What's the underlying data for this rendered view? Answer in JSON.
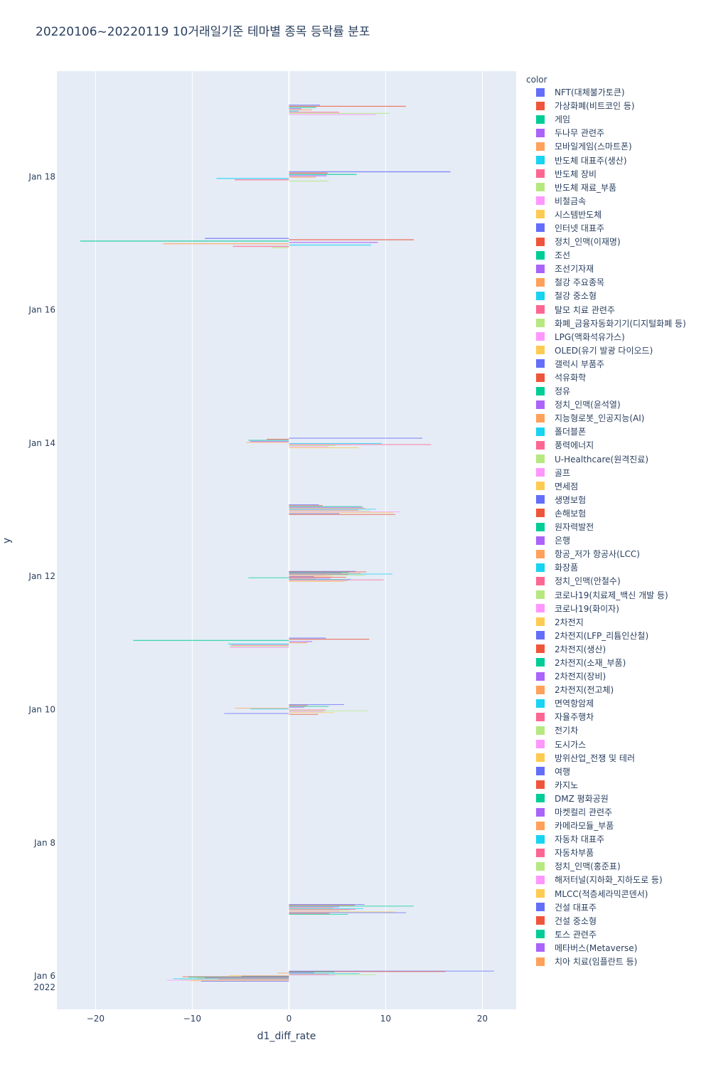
{
  "chart_data": {
    "type": "bar",
    "orientation": "horizontal",
    "title": "20220106~20220119 10거래일기준 테마별 종목 등락률 분포",
    "xlabel": "d1_diff_rate",
    "ylabel": "y",
    "xlim": [
      -24,
      23.5
    ],
    "x_ticks": [
      -20,
      -10,
      0,
      10,
      20
    ],
    "x_tick_labels": [
      "−20",
      "−10",
      "0",
      "10",
      "20"
    ],
    "y_range": [
      "2022-01-05 12:00",
      "2022-01-19 14:00"
    ],
    "y_ticks": [
      {
        "date": "2022-01-06",
        "label": "Jan 6",
        "sublabel": "2022"
      },
      {
        "date": "2022-01-08",
        "label": "Jan 8"
      },
      {
        "date": "2022-01-10",
        "label": "Jan 10"
      },
      {
        "date": "2022-01-12",
        "label": "Jan 12"
      },
      {
        "date": "2022-01-14",
        "label": "Jan 14"
      },
      {
        "date": "2022-01-16",
        "label": "Jan 16"
      },
      {
        "date": "2022-01-18",
        "label": "Jan 18"
      }
    ],
    "legend_title": "color",
    "legend_position": "right",
    "categories": [
      "NFT(대체불가토큰)",
      "가상화폐(비트코인 등)",
      "게임",
      "두나무 관련주",
      "모바일게임(스마트폰)",
      "반도체 대표주(생산)",
      "반도체 장비",
      "반도체 재료_부품",
      "비철금속",
      "시스템반도체",
      "인터넷 대표주",
      "정치_인맥(이재명)",
      "조선",
      "조선기자재",
      "철강 주요종목",
      "철강 중소형",
      "탈모 치료 관련주",
      "화폐_금융자동화기기(디지털화폐 등)",
      "LPG(액화석유가스)",
      "OLED(유기 발광 다이오드)",
      "갤럭시 부품주",
      "석유화학",
      "정유",
      "정치_인맥(윤석열)",
      "지능형로봇_인공지능(AI)",
      "폴더블폰",
      "풍력에너지",
      "U-Healthcare(원격진료)",
      "골프",
      "면세점",
      "생명보험",
      "손해보험",
      "원자력발전",
      "은행",
      "항공_저가 항공사(LCC)",
      "화장품",
      "정치_인맥(안철수)",
      "코로나19(치료제_백신 개발 등)",
      "코로나19(화이자)",
      "2차전지",
      "2차전지(LFP_리튬인산철)",
      "2차전지(생산)",
      "2차전지(소재_부품)",
      "2차전지(장비)",
      "2차전지(전고체)",
      "면역항암제",
      "자율주행차",
      "전기차",
      "도시가스",
      "방위산업_전쟁 및 테러",
      "여행",
      "카지노",
      "DMZ 평화공원",
      "마켓컬리 관련주",
      "카메라모듈_부품",
      "자동차 대표주",
      "자동차부품",
      "정치_인맥(홍준표)",
      "해저터널(지하화_지하도로 등)",
      "MLCC(적층세라믹콘덴서)",
      "건설 대표주",
      "건설 중소형",
      "토스 관련주",
      "메타버스(Metaverse)",
      "치아 치료(임플란트 등)"
    ],
    "colors": [
      "#636efa",
      "#EF553B",
      "#00cc96",
      "#ab63fa",
      "#FFA15A",
      "#19d3f3",
      "#FF6692",
      "#B6E880",
      "#FF97FF",
      "#FECB52"
    ],
    "groups": [
      {
        "date": "2022-01-06",
        "values": [
          21.2,
          16.2,
          4.7,
          2.6,
          -1.2,
          7.3,
          4.1,
          9.0,
          4.8,
          -6.2,
          -4.9,
          -11.0,
          -10.4,
          -8.7,
          -9.5,
          -12.0,
          -7.3,
          -11.3,
          -12.6,
          -10.2,
          -9.1
        ]
      },
      {
        "date": "2022-01-07",
        "values": [
          7.8,
          6.8,
          12.9,
          5.2,
          4.6,
          7.7,
          6.9,
          6.3,
          5.2,
          11.0,
          12.1,
          4.2,
          6.1
        ]
      },
      {
        "date": "2022-01-10",
        "values": [
          5.7,
          1.9,
          4.1,
          1.6,
          -5.6,
          -4.0,
          3.8,
          8.2,
          3.6,
          4.7,
          -6.7,
          3.0
        ]
      },
      {
        "date": "2022-01-11",
        "values": [
          3.8,
          8.3,
          -16.1,
          2.4,
          1.9,
          -6.3,
          -6.0,
          -6.2,
          -6.1
        ]
      },
      {
        "date": "2022-01-12",
        "values": [
          6.9,
          8.0,
          6.2,
          5.4,
          7.4,
          10.7,
          6.1,
          7.9,
          3.9,
          4.5,
          2.6,
          5.9,
          -4.2,
          4.3,
          2.8,
          6.4,
          9.8,
          6.0,
          6.1,
          5.7
        ]
      },
      {
        "date": "2022-01-13",
        "values": [
          3.1,
          3.5,
          7.5,
          7.7,
          7.9,
          9.0,
          7.2,
          8.4,
          11.5,
          10.8,
          5.2,
          11.0
        ]
      },
      {
        "date": "2022-01-14",
        "values": [
          13.8,
          -2.3,
          -4.2,
          -4.0,
          -4.4,
          9.6,
          14.7,
          4.8,
          4.1,
          7.2
        ]
      },
      {
        "date": "2022-01-17",
        "values": [
          -8.7,
          12.9,
          -21.6,
          9.2,
          -13.0,
          8.5,
          -5.8,
          -1.8
        ]
      },
      {
        "date": "2022-01-18",
        "values": [
          16.7,
          4.0,
          7.0,
          3.9,
          2.8,
          -7.5,
          -5.6,
          4.1
        ]
      },
      {
        "date": "2022-01-19",
        "values": [
          3.2,
          12.1,
          2.8,
          1.3,
          2.4,
          1.0,
          5.2,
          10.4,
          9.0
        ]
      }
    ]
  }
}
